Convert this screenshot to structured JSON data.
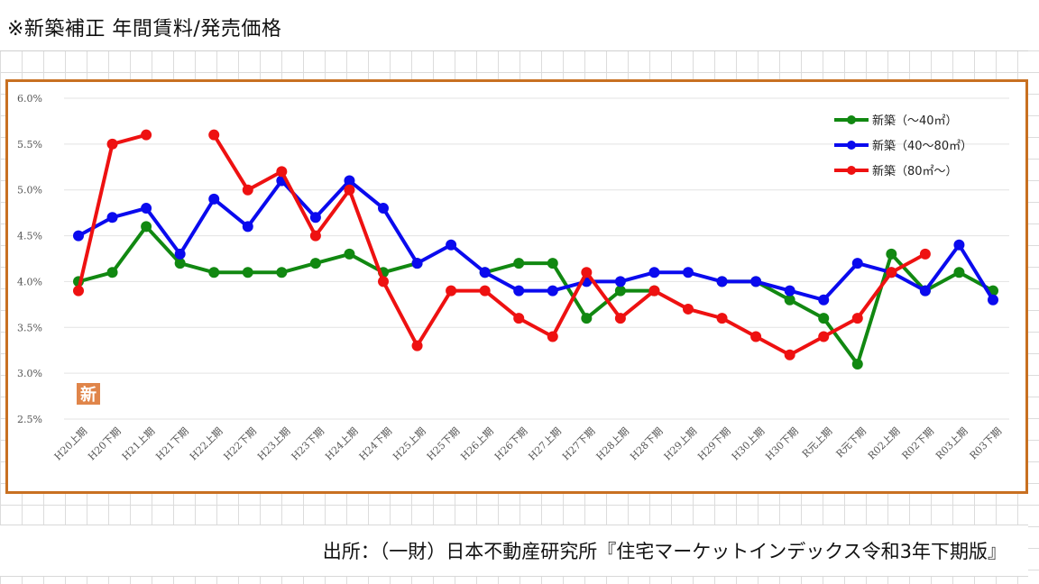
{
  "page": {
    "title": "※新築補正 年間賃料/発売価格",
    "badge": "新",
    "source": "出所：（一財）日本不動産研究所『住宅マーケットインデックス令和3年下期版』"
  },
  "chart_data": {
    "type": "line",
    "title": "",
    "xlabel": "",
    "ylabel": "",
    "ylim": [
      2.5,
      6.0
    ],
    "yticks": [
      "2.5%",
      "3.0%",
      "3.5%",
      "4.0%",
      "4.5%",
      "5.0%",
      "5.5%",
      "6.0%"
    ],
    "ytick_values": [
      2.5,
      3.0,
      3.5,
      4.0,
      4.5,
      5.0,
      5.5,
      6.0
    ],
    "grid": true,
    "legend_position": "top-right",
    "categories": [
      "H20上期",
      "H20下期",
      "H21上期",
      "H21下期",
      "H22上期",
      "H22下期",
      "H23上期",
      "H23下期",
      "H24上期",
      "H24下期",
      "H25上期",
      "H25下期",
      "H26上期",
      "H26下期",
      "H27上期",
      "H27下期",
      "H28上期",
      "H28下期",
      "H29上期",
      "H29下期",
      "H30上期",
      "H30下期",
      "R元上期",
      "R元下期",
      "R02上期",
      "R02下期",
      "R03上期",
      "R03下期"
    ],
    "series": [
      {
        "name": "新築（～40㎡）",
        "color": "#118811",
        "values": [
          4.0,
          4.1,
          4.6,
          4.2,
          4.1,
          4.1,
          4.1,
          4.2,
          4.3,
          4.1,
          4.2,
          null,
          4.1,
          4.2,
          4.2,
          3.6,
          3.9,
          3.9,
          null,
          4.0,
          4.0,
          3.8,
          3.6,
          3.1,
          4.3,
          3.9,
          4.1,
          3.9
        ]
      },
      {
        "name": "新築（40～80㎡）",
        "color": "#0a0aee",
        "values": [
          4.5,
          4.7,
          4.8,
          4.3,
          4.9,
          4.6,
          5.1,
          4.7,
          5.1,
          4.8,
          4.2,
          4.4,
          4.1,
          3.9,
          3.9,
          4.0,
          4.0,
          4.1,
          4.1,
          4.0,
          4.0,
          3.9,
          3.8,
          4.2,
          4.1,
          3.9,
          4.4,
          3.8
        ]
      },
      {
        "name": "新築（80㎡～）",
        "color": "#ee1111",
        "values": [
          3.9,
          5.5,
          5.6,
          null,
          5.6,
          5.0,
          5.2,
          4.5,
          5.0,
          4.0,
          3.3,
          3.9,
          3.9,
          3.6,
          3.4,
          4.1,
          3.6,
          3.9,
          3.7,
          3.6,
          3.4,
          3.2,
          3.4,
          3.6,
          4.1,
          4.3,
          null,
          null
        ]
      }
    ]
  }
}
